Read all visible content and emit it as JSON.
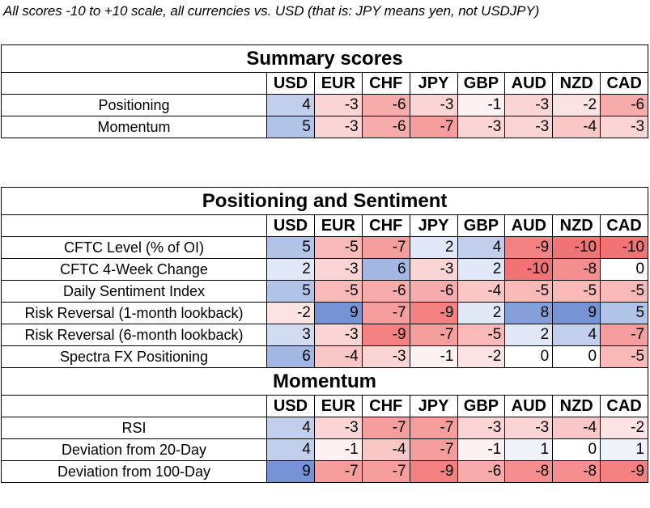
{
  "caption": "All scores -10 to +10 scale, all currencies vs. USD (that is: JPY means yen, not USDJPY)",
  "currencies": [
    "USD",
    "EUR",
    "CHF",
    "JPY",
    "GBP",
    "AUD",
    "NZD",
    "CAD"
  ],
  "colors": {
    "positive": "#4a72c8",
    "negative": "#f05a5a",
    "neutral": "#ffffff"
  },
  "tables": [
    {
      "title": "Summary scores",
      "sections": [
        {
          "rows": [
            {
              "label": "Positioning",
              "values": [
                4,
                -3,
                -6,
                -3,
                -1,
                -3,
                -2,
                -6
              ]
            },
            {
              "label": "Momentum",
              "values": [
                5,
                -3,
                -6,
                -7,
                -3,
                -3,
                -4,
                -3
              ]
            }
          ]
        }
      ]
    },
    {
      "title": "Positioning and Sentiment",
      "sections": [
        {
          "rows": [
            {
              "label": "CFTC Level (% of OI)",
              "values": [
                5,
                -5,
                -7,
                2,
                4,
                -9,
                -10,
                -10
              ]
            },
            {
              "label": "CFTC 4-Week Change",
              "values": [
                2,
                -3,
                6,
                -3,
                2,
                -10,
                -8,
                0
              ]
            },
            {
              "label": "Daily Sentiment Index",
              "values": [
                5,
                -5,
                -6,
                -6,
                -4,
                -5,
                -5,
                -5
              ]
            },
            {
              "label": "Risk Reversal (1-month lookback)",
              "values": [
                -2,
                9,
                -7,
                -9,
                2,
                8,
                9,
                5
              ]
            },
            {
              "label": "Risk Reversal (6-month lookback)",
              "values": [
                3,
                -3,
                -9,
                -7,
                -5,
                2,
                4,
                -7
              ]
            },
            {
              "label": "Spectra FX Positioning",
              "values": [
                6,
                -4,
                -3,
                -1,
                -2,
                0,
                0,
                -5
              ]
            }
          ]
        },
        {
          "title": "Momentum",
          "rows": [
            {
              "label": "RSI",
              "values": [
                4,
                -3,
                -7,
                -7,
                -3,
                -3,
                -4,
                -2
              ]
            },
            {
              "label": "Deviation from 20-Day",
              "values": [
                4,
                -1,
                -4,
                -7,
                -1,
                1,
                0,
                1
              ]
            },
            {
              "label": "Deviation from 100-Day",
              "values": [
                9,
                -7,
                -7,
                -9,
                -6,
                -8,
                -8,
                -9
              ]
            }
          ]
        }
      ]
    }
  ]
}
